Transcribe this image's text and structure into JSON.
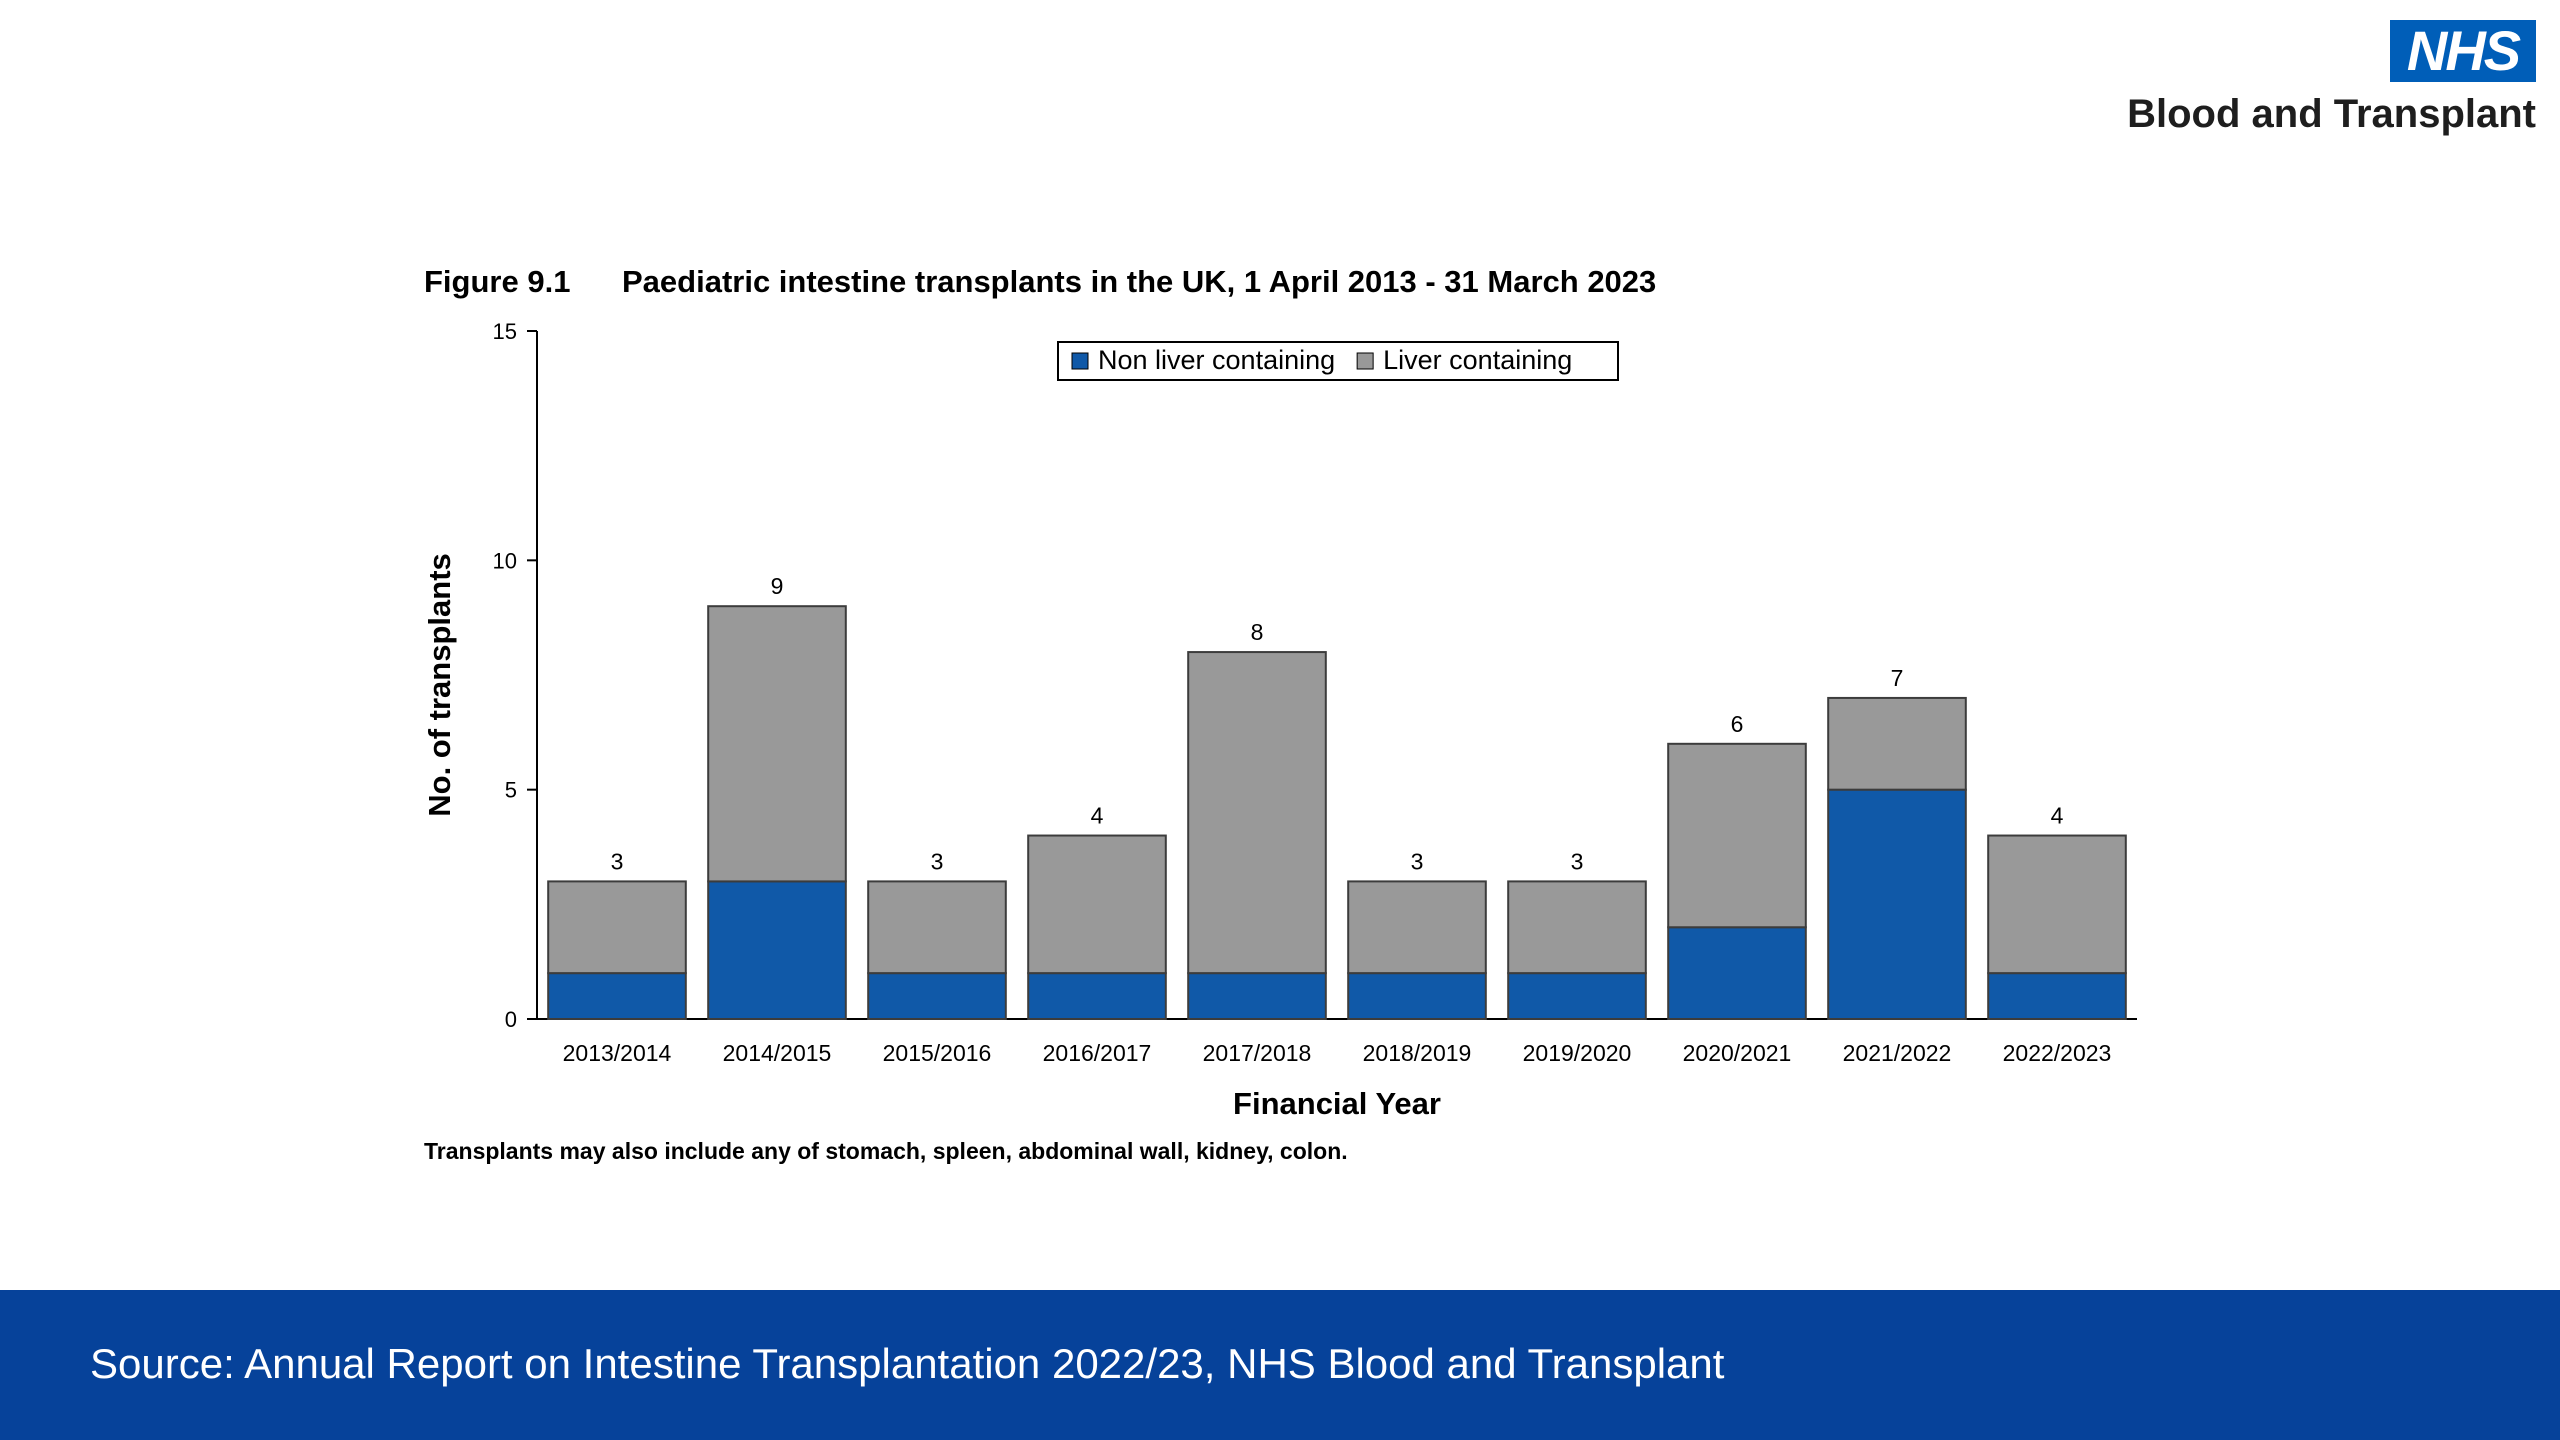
{
  "logo": {
    "mark": "NHS",
    "subtitle": "Blood and Transplant"
  },
  "figure": {
    "number": "Figure 9.1",
    "title": "Paediatric intestine transplants in the UK, 1 April 2013 - 31 March 2023",
    "note": "Transplants may also include any of stomach, spleen, abdominal wall, kidney, colon."
  },
  "footer": {
    "source": "Source: Annual Report on Intestine Transplantation 2022/23, NHS Blood and Transplant"
  },
  "chart_data": {
    "type": "bar",
    "stacked": true,
    "title": "",
    "xlabel": "Financial Year",
    "ylabel": "No. of transplants",
    "ylim": [
      0,
      15
    ],
    "yticks": [
      0,
      5,
      10,
      15
    ],
    "categories": [
      "2013/2014",
      "2014/2015",
      "2015/2016",
      "2016/2017",
      "2017/2018",
      "2018/2019",
      "2019/2020",
      "2020/2021",
      "2021/2022",
      "2022/2023"
    ],
    "series": [
      {
        "name": "Non liver containing",
        "color": "#1059a8",
        "values": [
          1,
          3,
          1,
          1,
          1,
          1,
          1,
          2,
          5,
          1
        ]
      },
      {
        "name": "Liver containing",
        "color": "#999999",
        "values": [
          2,
          6,
          2,
          3,
          7,
          2,
          2,
          4,
          2,
          3
        ]
      }
    ],
    "totals": [
      3,
      9,
      3,
      4,
      8,
      3,
      3,
      6,
      7,
      4
    ],
    "legend_position": "top",
    "grid": false
  }
}
